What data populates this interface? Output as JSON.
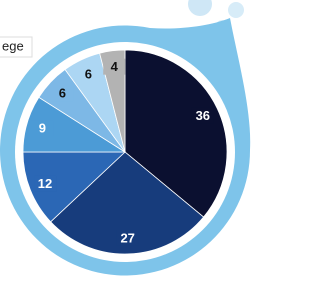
{
  "chart_data": {
    "type": "pie",
    "annotation": "ege",
    "values": [
      36,
      27,
      12,
      9,
      6,
      6,
      4
    ],
    "colors": [
      "#0b1030",
      "#173c7c",
      "#2b67b5",
      "#4c9bd6",
      "#7db8e6",
      "#acd6f3",
      "#b3b3b3"
    ]
  }
}
